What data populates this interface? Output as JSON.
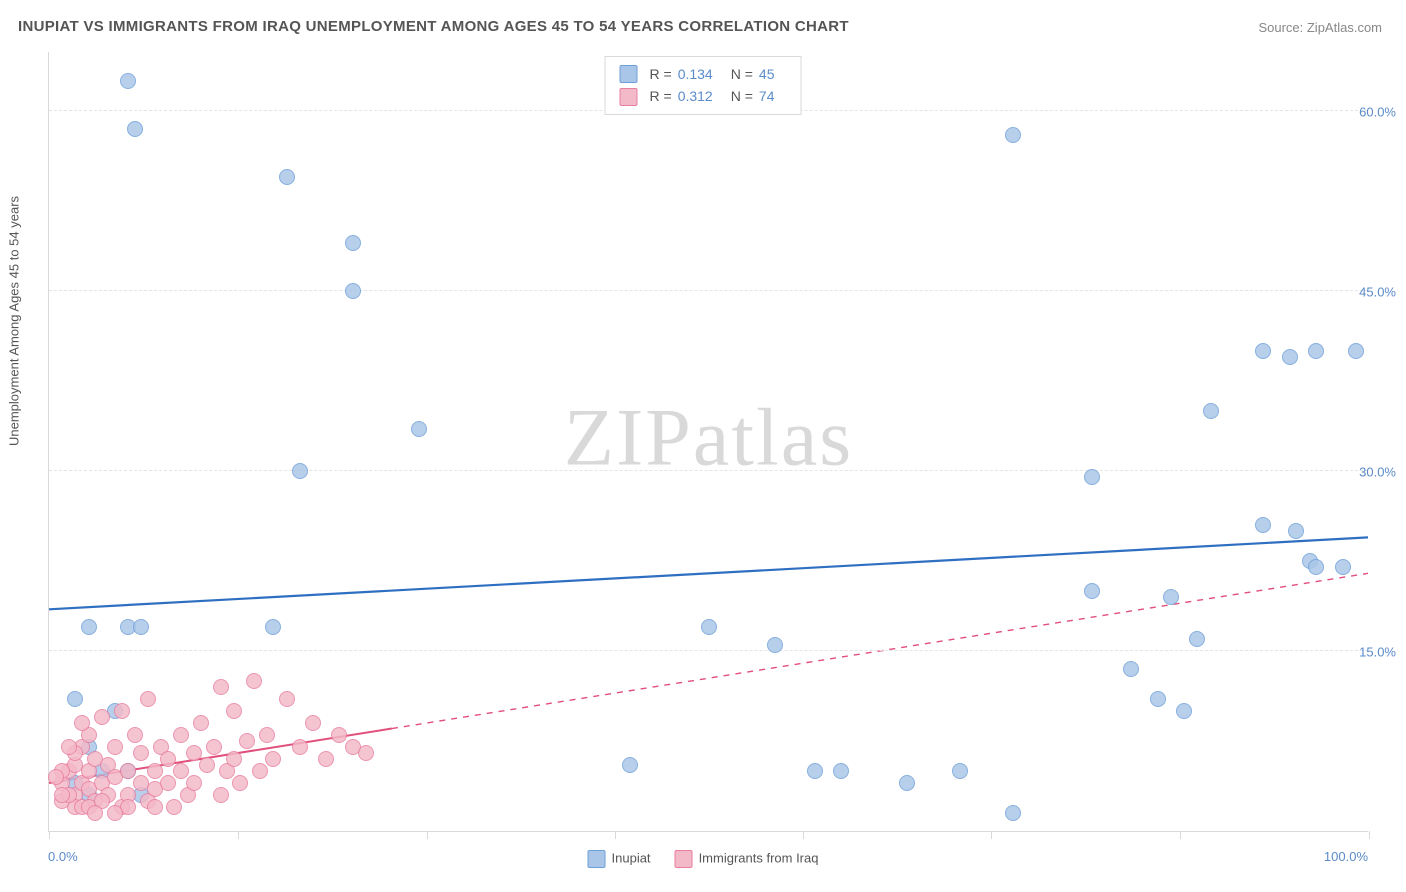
{
  "title": "INUPIAT VS IMMIGRANTS FROM IRAQ UNEMPLOYMENT AMONG AGES 45 TO 54 YEARS CORRELATION CHART",
  "source": "Source: ZipAtlas.com",
  "ylabel": "Unemployment Among Ages 45 to 54 years",
  "watermark_a": "ZIP",
  "watermark_b": "atlas",
  "chart": {
    "type": "scatter",
    "xlim": [
      0,
      100
    ],
    "ylim": [
      0,
      65
    ],
    "x_tick_positions": [
      0,
      14.3,
      28.6,
      42.9,
      57.1,
      71.4,
      85.7,
      100
    ],
    "y_gridlines": [
      15,
      30,
      45,
      60
    ],
    "y_tick_labels": [
      "15.0%",
      "30.0%",
      "45.0%",
      "60.0%"
    ],
    "x_left_label": "0.0%",
    "x_right_label": "100.0%",
    "background_color": "#ffffff",
    "grid_color": "#e4e4e4",
    "axis_color": "#d9d9d9",
    "marker_radius": 8,
    "marker_border_width": 1.2,
    "fill_opacity": 0.38
  },
  "legend_top": {
    "rows": [
      {
        "swatch_fill": "#a9c6e8",
        "swatch_border": "#6f9fd8",
        "r": "0.134",
        "n": "45"
      },
      {
        "swatch_fill": "#f4b9c8",
        "swatch_border": "#e87fa0",
        "r": "0.312",
        "n": "74"
      }
    ],
    "r_prefix": "R =",
    "n_prefix": "N ="
  },
  "legend_bottom": {
    "items": [
      {
        "label": "Inupiat",
        "swatch_fill": "#a9c6e8",
        "swatch_border": "#6f9fd8"
      },
      {
        "label": "Immigrants from Iraq",
        "swatch_fill": "#f4b9c8",
        "swatch_border": "#e87fa0"
      }
    ]
  },
  "series": [
    {
      "name": "Inupiat",
      "fill": "#a9c6e8",
      "border": "#6f9fd8",
      "trend": {
        "color": "#2f6fc1",
        "width": 2.2,
        "y_at_x0": 18.5,
        "y_at_x100": 24.5
      },
      "points": [
        [
          6,
          62.5
        ],
        [
          6.5,
          58.5
        ],
        [
          18,
          54.5
        ],
        [
          23,
          49
        ],
        [
          23,
          45
        ],
        [
          28,
          33.5
        ],
        [
          19,
          30
        ],
        [
          79,
          29.5
        ],
        [
          92,
          25.5
        ],
        [
          94.5,
          25
        ],
        [
          95.5,
          22.5
        ],
        [
          96,
          22
        ],
        [
          98,
          22
        ],
        [
          85,
          19.5
        ],
        [
          73,
          58
        ],
        [
          3,
          7
        ],
        [
          3,
          17
        ],
        [
          6,
          17
        ],
        [
          7,
          17
        ],
        [
          17,
          17
        ],
        [
          50,
          17
        ],
        [
          55,
          15.5
        ],
        [
          79,
          20
        ],
        [
          87,
          16
        ],
        [
          84,
          11
        ],
        [
          86,
          10
        ],
        [
          82,
          13.5
        ],
        [
          2,
          11
        ],
        [
          5,
          10
        ],
        [
          58,
          5
        ],
        [
          60,
          5
        ],
        [
          69,
          5
        ],
        [
          65,
          4
        ],
        [
          73,
          1.5
        ],
        [
          2,
          4
        ],
        [
          3,
          3
        ],
        [
          7,
          3
        ],
        [
          44,
          5.5
        ],
        [
          6,
          5
        ],
        [
          88,
          35
        ],
        [
          94,
          39.5
        ],
        [
          92,
          40
        ],
        [
          96,
          40
        ],
        [
          99,
          40
        ],
        [
          4,
          5
        ]
      ]
    },
    {
      "name": "Immigrants from Iraq",
      "fill": "#f4b9c8",
      "border": "#e87fa0",
      "trend": {
        "color": "#e14f7c",
        "width": 2,
        "solid_until_x": 26,
        "y_at_x0": 4,
        "y_at_x100": 21.5
      },
      "points": [
        [
          1,
          4
        ],
        [
          1.5,
          5
        ],
        [
          2,
          3
        ],
        [
          2,
          5.5
        ],
        [
          2.5,
          4
        ],
        [
          2.5,
          7
        ],
        [
          3,
          3.5
        ],
        [
          3,
          5
        ],
        [
          3,
          8
        ],
        [
          3.5,
          2.5
        ],
        [
          3.5,
          6
        ],
        [
          4,
          4
        ],
        [
          4,
          9.5
        ],
        [
          4.5,
          3
        ],
        [
          4.5,
          5.5
        ],
        [
          5,
          7
        ],
        [
          5,
          4.5
        ],
        [
          5.5,
          2
        ],
        [
          5.5,
          10
        ],
        [
          6,
          5
        ],
        [
          6,
          3
        ],
        [
          6.5,
          8
        ],
        [
          7,
          4
        ],
        [
          7,
          6.5
        ],
        [
          7.5,
          2.5
        ],
        [
          7.5,
          11
        ],
        [
          8,
          5
        ],
        [
          8,
          3.5
        ],
        [
          8.5,
          7
        ],
        [
          9,
          4
        ],
        [
          9,
          6
        ],
        [
          9.5,
          2
        ],
        [
          10,
          8
        ],
        [
          10,
          5
        ],
        [
          10.5,
          3
        ],
        [
          11,
          6.5
        ],
        [
          11,
          4
        ],
        [
          11.5,
          9
        ],
        [
          12,
          5.5
        ],
        [
          12.5,
          7
        ],
        [
          13,
          3
        ],
        [
          13,
          12
        ],
        [
          13.5,
          5
        ],
        [
          14,
          6
        ],
        [
          14,
          10
        ],
        [
          14.5,
          4
        ],
        [
          15,
          7.5
        ],
        [
          15.5,
          12.5
        ],
        [
          16,
          5
        ],
        [
          16.5,
          8
        ],
        [
          17,
          6
        ],
        [
          18,
          11
        ],
        [
          19,
          7
        ],
        [
          20,
          9
        ],
        [
          21,
          6
        ],
        [
          22,
          8
        ],
        [
          23,
          7
        ],
        [
          24,
          6.5
        ],
        [
          2,
          2
        ],
        [
          2.5,
          2
        ],
        [
          3,
          2
        ],
        [
          1,
          2.5
        ],
        [
          1.5,
          3
        ],
        [
          4,
          2.5
        ],
        [
          6,
          2
        ],
        [
          8,
          2
        ],
        [
          5,
          1.5
        ],
        [
          3.5,
          1.5
        ],
        [
          2,
          6.5
        ],
        [
          2.5,
          9
        ],
        [
          1.5,
          7
        ],
        [
          1,
          5
        ],
        [
          1,
          3
        ],
        [
          0.5,
          4.5
        ]
      ]
    }
  ]
}
